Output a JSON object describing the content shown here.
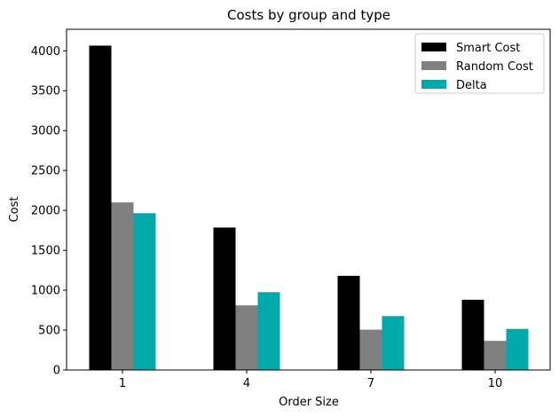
{
  "chart_data": {
    "type": "bar",
    "title": "Costs by group and type",
    "xlabel": "Order Size",
    "ylabel": "Cost",
    "categories": [
      "1",
      "4",
      "7",
      "10"
    ],
    "series": [
      {
        "name": "Smart Cost",
        "color": "#000000",
        "values": [
          4065,
          1785,
          1180,
          880
        ]
      },
      {
        "name": "Random Cost",
        "color": "#808080",
        "values": [
          2100,
          810,
          505,
          365
        ]
      },
      {
        "name": "Delta",
        "color": "#00aaaa",
        "values": [
          1965,
          975,
          675,
          515
        ]
      }
    ],
    "ylim": [
      0,
      4270
    ],
    "yticks": [
      0,
      500,
      1000,
      1500,
      2000,
      2500,
      3000,
      3500,
      4000
    ],
    "grid": false,
    "legend_position": "top-right"
  }
}
